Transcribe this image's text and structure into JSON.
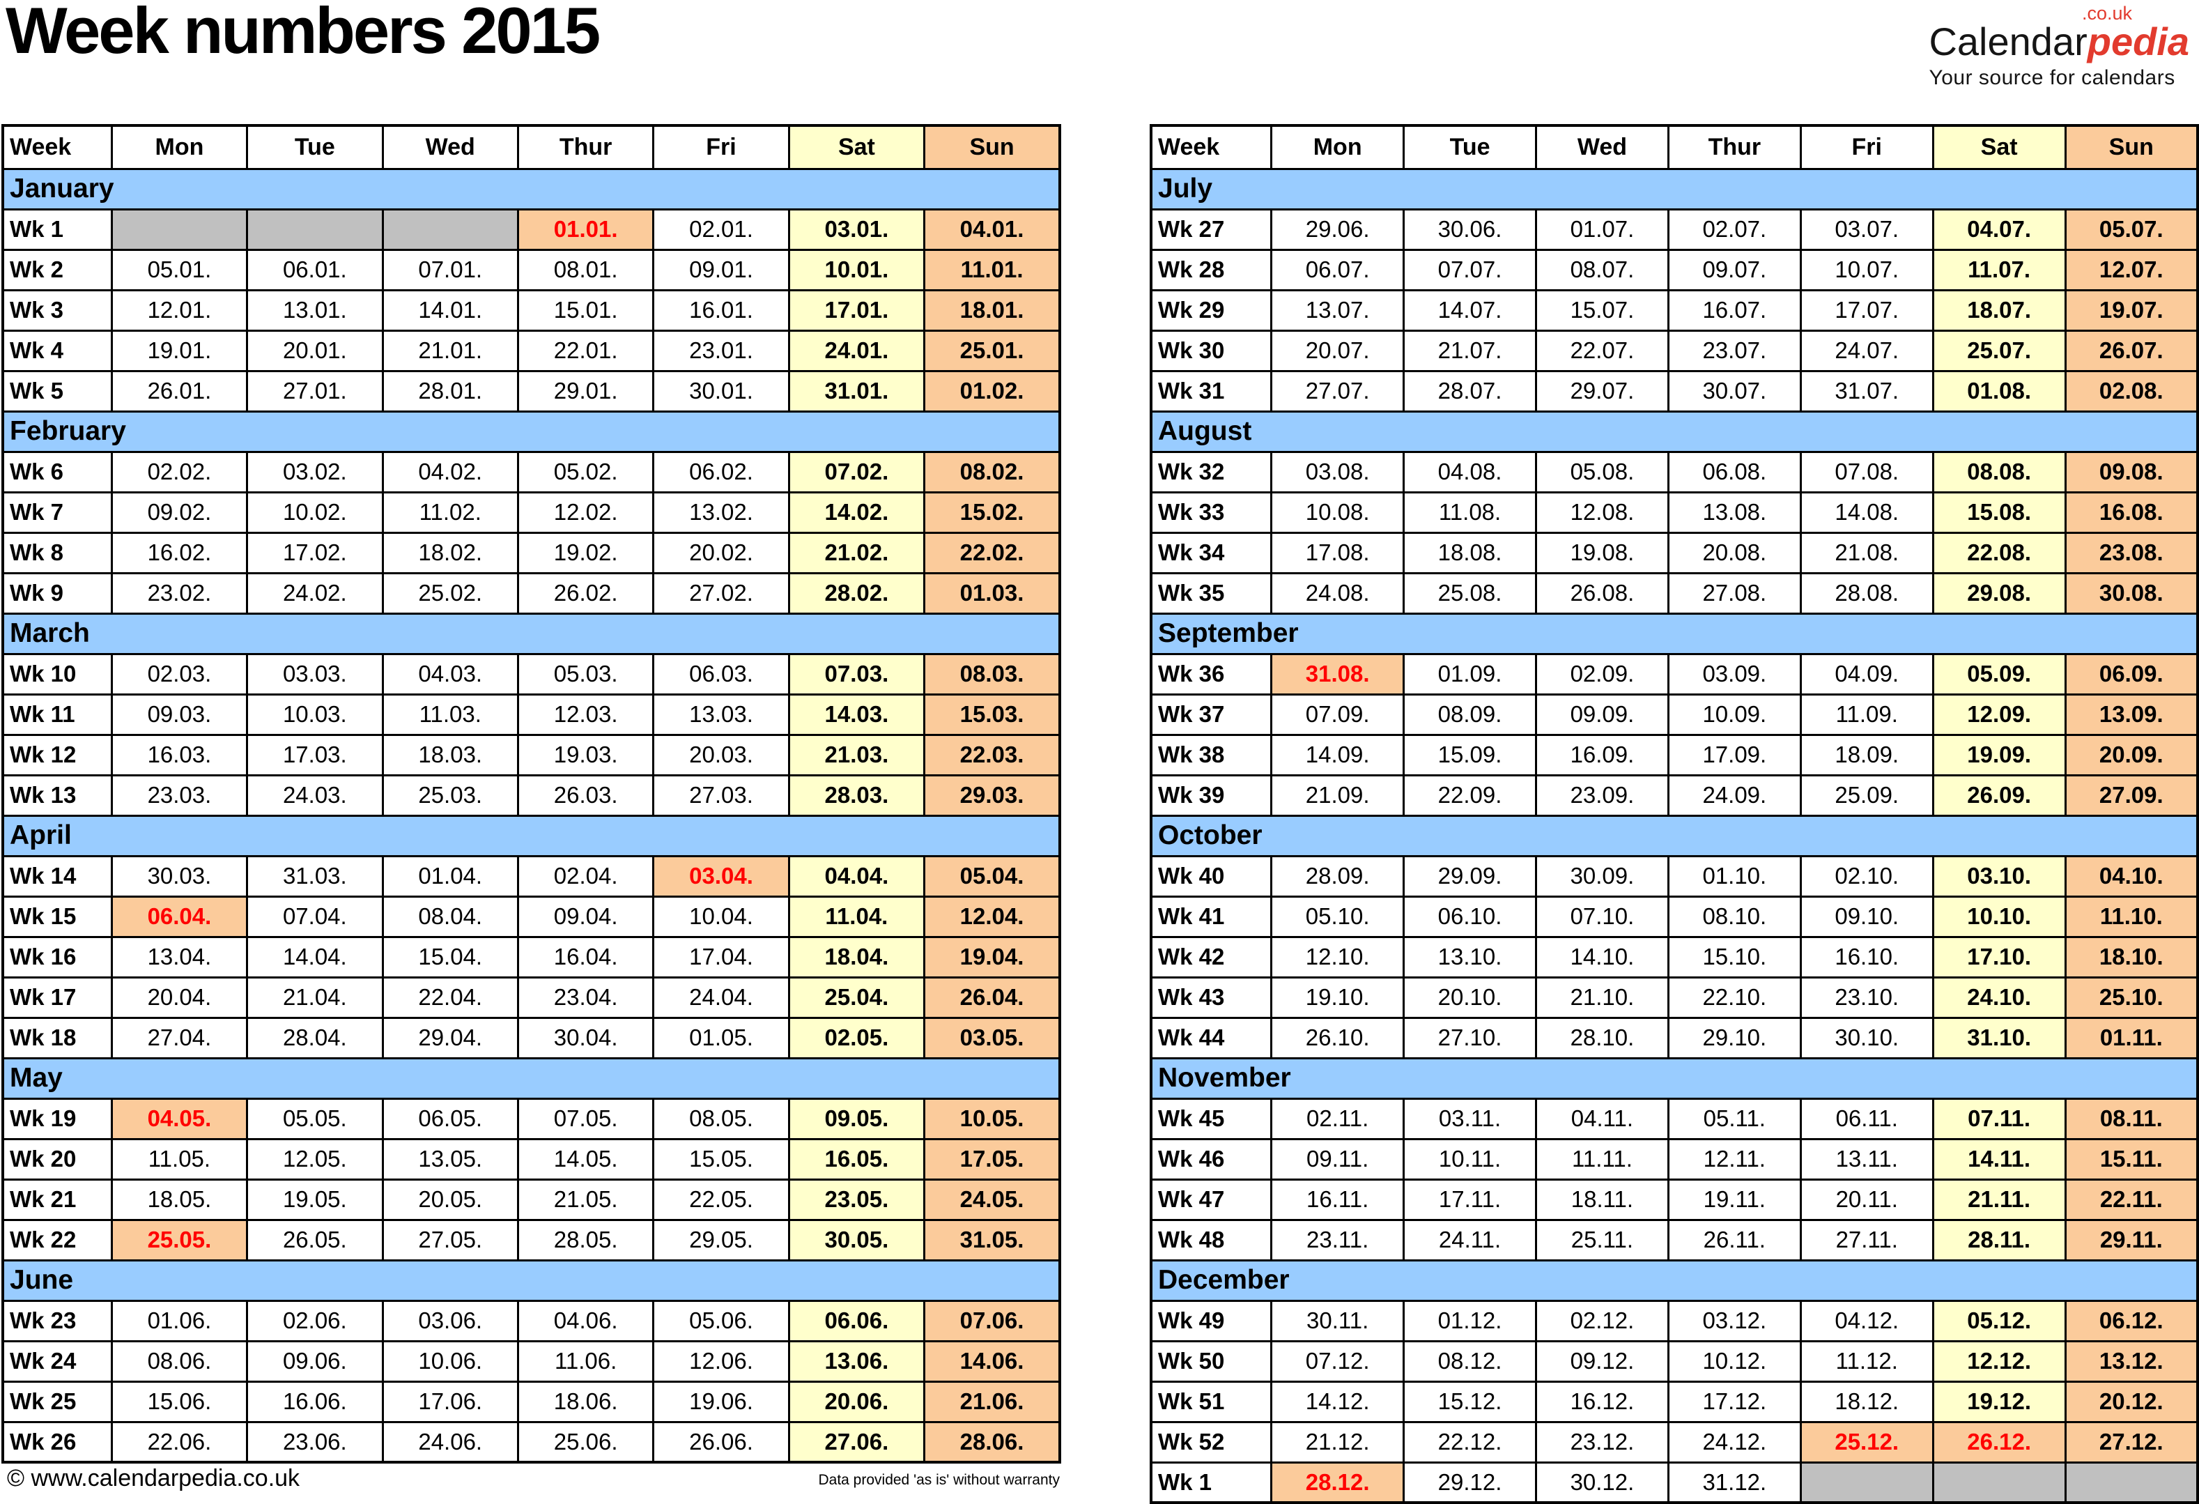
{
  "title": "Week numbers 2015",
  "logo": {
    "name_black": "Calendar",
    "name_red": "pedia",
    "tld": ".co.uk",
    "tagline": "Your source for calendars"
  },
  "table_header": [
    "Week",
    "Mon",
    "Tue",
    "Wed",
    "Thur",
    "Fri",
    "Sat",
    "Sun"
  ],
  "footer": {
    "copyright": "© www.calendarpedia.co.uk",
    "disclaimer": "Data provided 'as is' without warranty"
  },
  "colors": {
    "month_band": "#99CCFF",
    "saturday": "#FFFFCC",
    "sunday": "#FBCB9B",
    "holiday_bg": "#FBCB9B",
    "holiday_text": "#FF0000",
    "empty_cell": "#C0C0C0",
    "logo_red": "#E23B2E"
  },
  "tables": [
    {
      "position": "left",
      "months": [
        {
          "name": "January",
          "weeks": [
            {
              "week": "Wk 1",
              "days": [
                "",
                "",
                "",
                "01.01.",
                "02.01.",
                "03.01.",
                "04.01."
              ],
              "empty": [
                0,
                1,
                2
              ],
              "holiday": [
                3
              ]
            },
            {
              "week": "Wk 2",
              "days": [
                "05.01.",
                "06.01.",
                "07.01.",
                "08.01.",
                "09.01.",
                "10.01.",
                "11.01."
              ]
            },
            {
              "week": "Wk 3",
              "days": [
                "12.01.",
                "13.01.",
                "14.01.",
                "15.01.",
                "16.01.",
                "17.01.",
                "18.01."
              ]
            },
            {
              "week": "Wk 4",
              "days": [
                "19.01.",
                "20.01.",
                "21.01.",
                "22.01.",
                "23.01.",
                "24.01.",
                "25.01."
              ]
            },
            {
              "week": "Wk 5",
              "days": [
                "26.01.",
                "27.01.",
                "28.01.",
                "29.01.",
                "30.01.",
                "31.01.",
                "01.02."
              ]
            }
          ]
        },
        {
          "name": "February",
          "weeks": [
            {
              "week": "Wk 6",
              "days": [
                "02.02.",
                "03.02.",
                "04.02.",
                "05.02.",
                "06.02.",
                "07.02.",
                "08.02."
              ]
            },
            {
              "week": "Wk 7",
              "days": [
                "09.02.",
                "10.02.",
                "11.02.",
                "12.02.",
                "13.02.",
                "14.02.",
                "15.02."
              ]
            },
            {
              "week": "Wk 8",
              "days": [
                "16.02.",
                "17.02.",
                "18.02.",
                "19.02.",
                "20.02.",
                "21.02.",
                "22.02."
              ]
            },
            {
              "week": "Wk 9",
              "days": [
                "23.02.",
                "24.02.",
                "25.02.",
                "26.02.",
                "27.02.",
                "28.02.",
                "01.03."
              ]
            }
          ]
        },
        {
          "name": "March",
          "weeks": [
            {
              "week": "Wk 10",
              "days": [
                "02.03.",
                "03.03.",
                "04.03.",
                "05.03.",
                "06.03.",
                "07.03.",
                "08.03."
              ]
            },
            {
              "week": "Wk 11",
              "days": [
                "09.03.",
                "10.03.",
                "11.03.",
                "12.03.",
                "13.03.",
                "14.03.",
                "15.03."
              ]
            },
            {
              "week": "Wk 12",
              "days": [
                "16.03.",
                "17.03.",
                "18.03.",
                "19.03.",
                "20.03.",
                "21.03.",
                "22.03."
              ]
            },
            {
              "week": "Wk 13",
              "days": [
                "23.03.",
                "24.03.",
                "25.03.",
                "26.03.",
                "27.03.",
                "28.03.",
                "29.03."
              ]
            }
          ]
        },
        {
          "name": "April",
          "weeks": [
            {
              "week": "Wk 14",
              "days": [
                "30.03.",
                "31.03.",
                "01.04.",
                "02.04.",
                "03.04.",
                "04.04.",
                "05.04."
              ],
              "holiday": [
                4
              ]
            },
            {
              "week": "Wk 15",
              "days": [
                "06.04.",
                "07.04.",
                "08.04.",
                "09.04.",
                "10.04.",
                "11.04.",
                "12.04."
              ],
              "holiday": [
                0
              ]
            },
            {
              "week": "Wk 16",
              "days": [
                "13.04.",
                "14.04.",
                "15.04.",
                "16.04.",
                "17.04.",
                "18.04.",
                "19.04."
              ]
            },
            {
              "week": "Wk 17",
              "days": [
                "20.04.",
                "21.04.",
                "22.04.",
                "23.04.",
                "24.04.",
                "25.04.",
                "26.04."
              ]
            },
            {
              "week": "Wk 18",
              "days": [
                "27.04.",
                "28.04.",
                "29.04.",
                "30.04.",
                "01.05.",
                "02.05.",
                "03.05."
              ]
            }
          ]
        },
        {
          "name": "May",
          "weeks": [
            {
              "week": "Wk 19",
              "days": [
                "04.05.",
                "05.05.",
                "06.05.",
                "07.05.",
                "08.05.",
                "09.05.",
                "10.05."
              ],
              "holiday": [
                0
              ]
            },
            {
              "week": "Wk 20",
              "days": [
                "11.05.",
                "12.05.",
                "13.05.",
                "14.05.",
                "15.05.",
                "16.05.",
                "17.05."
              ]
            },
            {
              "week": "Wk 21",
              "days": [
                "18.05.",
                "19.05.",
                "20.05.",
                "21.05.",
                "22.05.",
                "23.05.",
                "24.05."
              ]
            },
            {
              "week": "Wk 22",
              "days": [
                "25.05.",
                "26.05.",
                "27.05.",
                "28.05.",
                "29.05.",
                "30.05.",
                "31.05."
              ],
              "holiday": [
                0
              ]
            }
          ]
        },
        {
          "name": "June",
          "weeks": [
            {
              "week": "Wk 23",
              "days": [
                "01.06.",
                "02.06.",
                "03.06.",
                "04.06.",
                "05.06.",
                "06.06.",
                "07.06."
              ]
            },
            {
              "week": "Wk 24",
              "days": [
                "08.06.",
                "09.06.",
                "10.06.",
                "11.06.",
                "12.06.",
                "13.06.",
                "14.06."
              ]
            },
            {
              "week": "Wk 25",
              "days": [
                "15.06.",
                "16.06.",
                "17.06.",
                "18.06.",
                "19.06.",
                "20.06.",
                "21.06."
              ]
            },
            {
              "week": "Wk 26",
              "days": [
                "22.06.",
                "23.06.",
                "24.06.",
                "25.06.",
                "26.06.",
                "27.06.",
                "28.06."
              ]
            }
          ]
        }
      ]
    },
    {
      "position": "right",
      "months": [
        {
          "name": "July",
          "weeks": [
            {
              "week": "Wk 27",
              "days": [
                "29.06.",
                "30.06.",
                "01.07.",
                "02.07.",
                "03.07.",
                "04.07.",
                "05.07."
              ]
            },
            {
              "week": "Wk 28",
              "days": [
                "06.07.",
                "07.07.",
                "08.07.",
                "09.07.",
                "10.07.",
                "11.07.",
                "12.07."
              ]
            },
            {
              "week": "Wk 29",
              "days": [
                "13.07.",
                "14.07.",
                "15.07.",
                "16.07.",
                "17.07.",
                "18.07.",
                "19.07."
              ]
            },
            {
              "week": "Wk 30",
              "days": [
                "20.07.",
                "21.07.",
                "22.07.",
                "23.07.",
                "24.07.",
                "25.07.",
                "26.07."
              ]
            },
            {
              "week": "Wk 31",
              "days": [
                "27.07.",
                "28.07.",
                "29.07.",
                "30.07.",
                "31.07.",
                "01.08.",
                "02.08."
              ]
            }
          ]
        },
        {
          "name": "August",
          "weeks": [
            {
              "week": "Wk 32",
              "days": [
                "03.08.",
                "04.08.",
                "05.08.",
                "06.08.",
                "07.08.",
                "08.08.",
                "09.08."
              ]
            },
            {
              "week": "Wk 33",
              "days": [
                "10.08.",
                "11.08.",
                "12.08.",
                "13.08.",
                "14.08.",
                "15.08.",
                "16.08."
              ]
            },
            {
              "week": "Wk 34",
              "days": [
                "17.08.",
                "18.08.",
                "19.08.",
                "20.08.",
                "21.08.",
                "22.08.",
                "23.08."
              ]
            },
            {
              "week": "Wk 35",
              "days": [
                "24.08.",
                "25.08.",
                "26.08.",
                "27.08.",
                "28.08.",
                "29.08.",
                "30.08."
              ]
            }
          ]
        },
        {
          "name": "September",
          "weeks": [
            {
              "week": "Wk 36",
              "days": [
                "31.08.",
                "01.09.",
                "02.09.",
                "03.09.",
                "04.09.",
                "05.09.",
                "06.09."
              ],
              "holiday": [
                0
              ]
            },
            {
              "week": "Wk 37",
              "days": [
                "07.09.",
                "08.09.",
                "09.09.",
                "10.09.",
                "11.09.",
                "12.09.",
                "13.09."
              ]
            },
            {
              "week": "Wk 38",
              "days": [
                "14.09.",
                "15.09.",
                "16.09.",
                "17.09.",
                "18.09.",
                "19.09.",
                "20.09."
              ]
            },
            {
              "week": "Wk 39",
              "days": [
                "21.09.",
                "22.09.",
                "23.09.",
                "24.09.",
                "25.09.",
                "26.09.",
                "27.09."
              ]
            }
          ]
        },
        {
          "name": "October",
          "weeks": [
            {
              "week": "Wk 40",
              "days": [
                "28.09.",
                "29.09.",
                "30.09.",
                "01.10.",
                "02.10.",
                "03.10.",
                "04.10."
              ]
            },
            {
              "week": "Wk 41",
              "days": [
                "05.10.",
                "06.10.",
                "07.10.",
                "08.10.",
                "09.10.",
                "10.10.",
                "11.10."
              ]
            },
            {
              "week": "Wk 42",
              "days": [
                "12.10.",
                "13.10.",
                "14.10.",
                "15.10.",
                "16.10.",
                "17.10.",
                "18.10."
              ]
            },
            {
              "week": "Wk 43",
              "days": [
                "19.10.",
                "20.10.",
                "21.10.",
                "22.10.",
                "23.10.",
                "24.10.",
                "25.10."
              ]
            },
            {
              "week": "Wk 44",
              "days": [
                "26.10.",
                "27.10.",
                "28.10.",
                "29.10.",
                "30.10.",
                "31.10.",
                "01.11."
              ]
            }
          ]
        },
        {
          "name": "November",
          "weeks": [
            {
              "week": "Wk 45",
              "days": [
                "02.11.",
                "03.11.",
                "04.11.",
                "05.11.",
                "06.11.",
                "07.11.",
                "08.11."
              ]
            },
            {
              "week": "Wk 46",
              "days": [
                "09.11.",
                "10.11.",
                "11.11.",
                "12.11.",
                "13.11.",
                "14.11.",
                "15.11."
              ]
            },
            {
              "week": "Wk 47",
              "days": [
                "16.11.",
                "17.11.",
                "18.11.",
                "19.11.",
                "20.11.",
                "21.11.",
                "22.11."
              ]
            },
            {
              "week": "Wk 48",
              "days": [
                "23.11.",
                "24.11.",
                "25.11.",
                "26.11.",
                "27.11.",
                "28.11.",
                "29.11."
              ]
            }
          ]
        },
        {
          "name": "December",
          "weeks": [
            {
              "week": "Wk 49",
              "days": [
                "30.11.",
                "01.12.",
                "02.12.",
                "03.12.",
                "04.12.",
                "05.12.",
                "06.12."
              ]
            },
            {
              "week": "Wk 50",
              "days": [
                "07.12.",
                "08.12.",
                "09.12.",
                "10.12.",
                "11.12.",
                "12.12.",
                "13.12."
              ]
            },
            {
              "week": "Wk 51",
              "days": [
                "14.12.",
                "15.12.",
                "16.12.",
                "17.12.",
                "18.12.",
                "19.12.",
                "20.12."
              ]
            },
            {
              "week": "Wk 52",
              "days": [
                "21.12.",
                "22.12.",
                "23.12.",
                "24.12.",
                "25.12.",
                "26.12.",
                "27.12."
              ],
              "holiday": [
                4,
                5
              ]
            },
            {
              "week": "Wk 1",
              "days": [
                "28.12.",
                "29.12.",
                "30.12.",
                "31.12.",
                "",
                "",
                ""
              ],
              "holiday": [
                0
              ],
              "empty": [
                4,
                5,
                6
              ]
            }
          ]
        }
      ]
    }
  ]
}
